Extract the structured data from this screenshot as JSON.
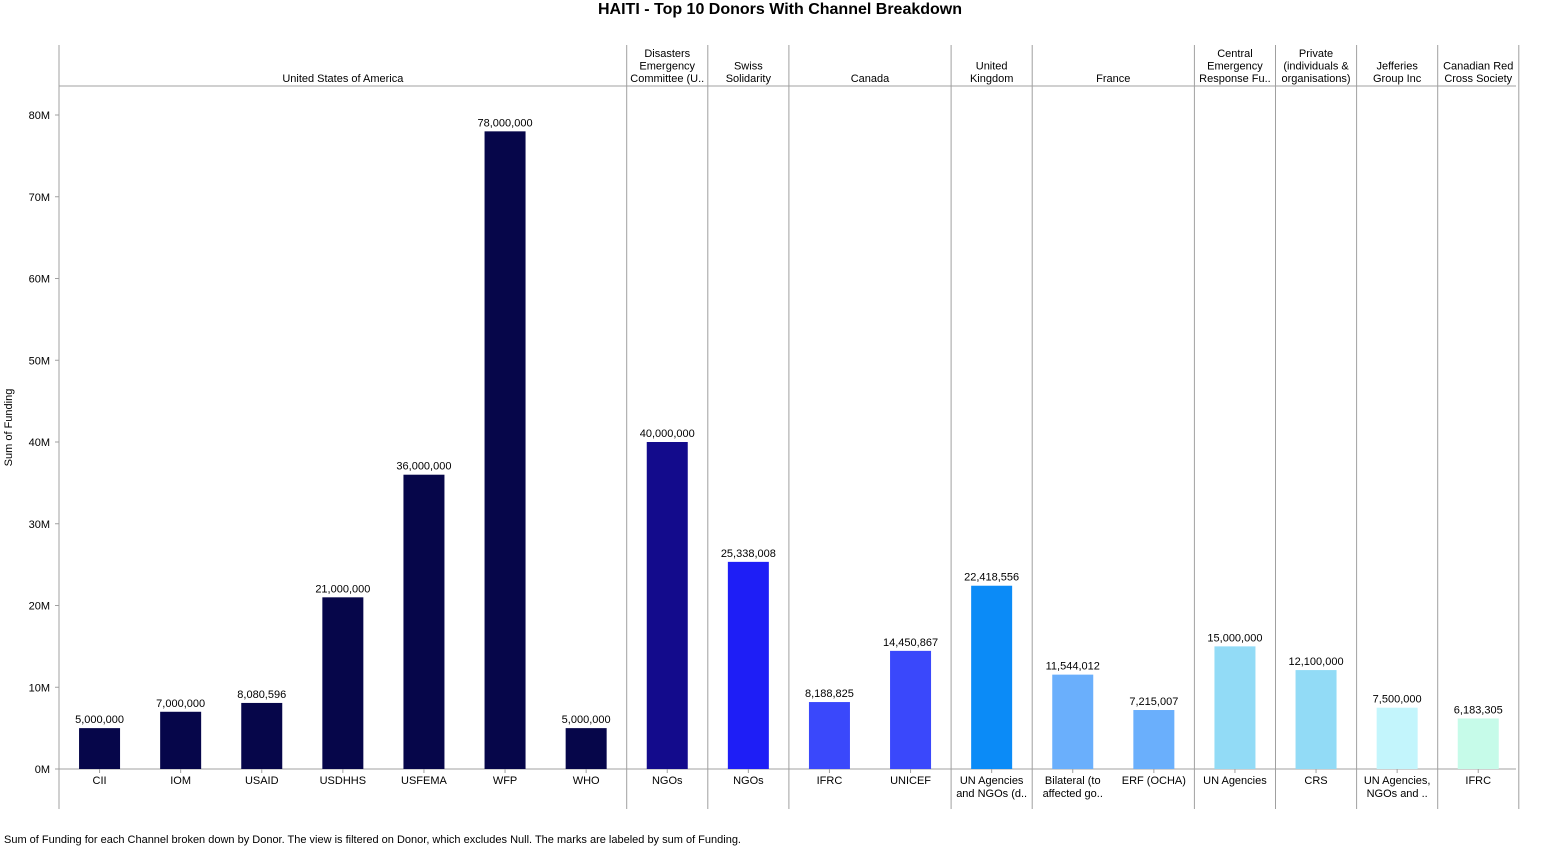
{
  "title": "HAITI - Top 10 Donors With Channel Breakdown",
  "footer": "Sum of Funding for each Channel broken down by Donor. The view is filtered on Donor, which excludes Null.  The marks are labeled by sum of Funding.",
  "chart_data": {
    "type": "bar",
    "ylabel": "Sum of Funding",
    "ylim": [
      0,
      83000000
    ],
    "yticks": [
      {
        "value": 0,
        "label": "0M"
      },
      {
        "value": 10000000,
        "label": "10M"
      },
      {
        "value": 20000000,
        "label": "20M"
      },
      {
        "value": 30000000,
        "label": "30M"
      },
      {
        "value": 40000000,
        "label": "40M"
      },
      {
        "value": 50000000,
        "label": "50M"
      },
      {
        "value": 60000000,
        "label": "60M"
      },
      {
        "value": 70000000,
        "label": "70M"
      },
      {
        "value": 80000000,
        "label": "80M"
      }
    ],
    "grid": false,
    "legend": "none",
    "groups": [
      {
        "donor_lines": [
          "United States of America"
        ],
        "color": "#06064a",
        "channels": [
          {
            "label_lines": [
              "CII"
            ],
            "value": 5000000,
            "value_label": "5,000,000"
          },
          {
            "label_lines": [
              "IOM"
            ],
            "value": 7000000,
            "value_label": "7,000,000"
          },
          {
            "label_lines": [
              "USAID"
            ],
            "value": 8080596,
            "value_label": "8,080,596"
          },
          {
            "label_lines": [
              "USDHHS"
            ],
            "value": 21000000,
            "value_label": "21,000,000"
          },
          {
            "label_lines": [
              "USFEMA"
            ],
            "value": 36000000,
            "value_label": "36,000,000"
          },
          {
            "label_lines": [
              "WFP"
            ],
            "value": 78000000,
            "value_label": "78,000,000"
          },
          {
            "label_lines": [
              "WHO"
            ],
            "value": 5000000,
            "value_label": "5,000,000"
          }
        ]
      },
      {
        "donor_lines": [
          "Disasters",
          "Emergency",
          "Committee (U.."
        ],
        "color": "#130b8c",
        "channels": [
          {
            "label_lines": [
              "NGOs"
            ],
            "value": 40000000,
            "value_label": "40,000,000"
          }
        ]
      },
      {
        "donor_lines": [
          "Swiss",
          "Solidarity"
        ],
        "color": "#1e1ef6",
        "channels": [
          {
            "label_lines": [
              "NGOs"
            ],
            "value": 25338008,
            "value_label": "25,338,008"
          }
        ]
      },
      {
        "donor_lines": [
          "Canada"
        ],
        "color": "#3a48fb",
        "channels": [
          {
            "label_lines": [
              "IFRC"
            ],
            "value": 8188825,
            "value_label": "8,188,825"
          },
          {
            "label_lines": [
              "UNICEF"
            ],
            "value": 14450867,
            "value_label": "14,450,867"
          }
        ]
      },
      {
        "donor_lines": [
          "United",
          "Kingdom"
        ],
        "color": "#0b8bf7",
        "channels": [
          {
            "label_lines": [
              "UN Agencies",
              "and NGOs (d.."
            ],
            "value": 22418556,
            "value_label": "22,418,556"
          }
        ]
      },
      {
        "donor_lines": [
          "France"
        ],
        "color": "#6aaffc",
        "channels": [
          {
            "label_lines": [
              "Bilateral (to",
              "affected go.."
            ],
            "value": 11544012,
            "value_label": "11,544,012"
          },
          {
            "label_lines": [
              "ERF (OCHA)"
            ],
            "value": 7215007,
            "value_label": "7,215,007"
          }
        ]
      },
      {
        "donor_lines": [
          "Central",
          "Emergency",
          "Response Fu.."
        ],
        "color": "#92dbf6",
        "channels": [
          {
            "label_lines": [
              "UN Agencies"
            ],
            "value": 15000000,
            "value_label": "15,000,000"
          }
        ]
      },
      {
        "donor_lines": [
          "Private",
          "(individuals &",
          "organisations)"
        ],
        "color": "#92dbf6",
        "channels": [
          {
            "label_lines": [
              "CRS"
            ],
            "value": 12100000,
            "value_label": "12,100,000"
          }
        ]
      },
      {
        "donor_lines": [
          "Jefferies",
          "Group Inc"
        ],
        "color": "#c3f5fc",
        "channels": [
          {
            "label_lines": [
              "UN Agencies,",
              "NGOs and .."
            ],
            "value": 7500000,
            "value_label": "7,500,000"
          }
        ]
      },
      {
        "donor_lines": [
          "Canadian Red",
          "Cross Society"
        ],
        "color": "#c6fbe9",
        "channels": [
          {
            "label_lines": [
              "IFRC"
            ],
            "value": 6183305,
            "value_label": "6,183,305"
          }
        ]
      }
    ]
  }
}
